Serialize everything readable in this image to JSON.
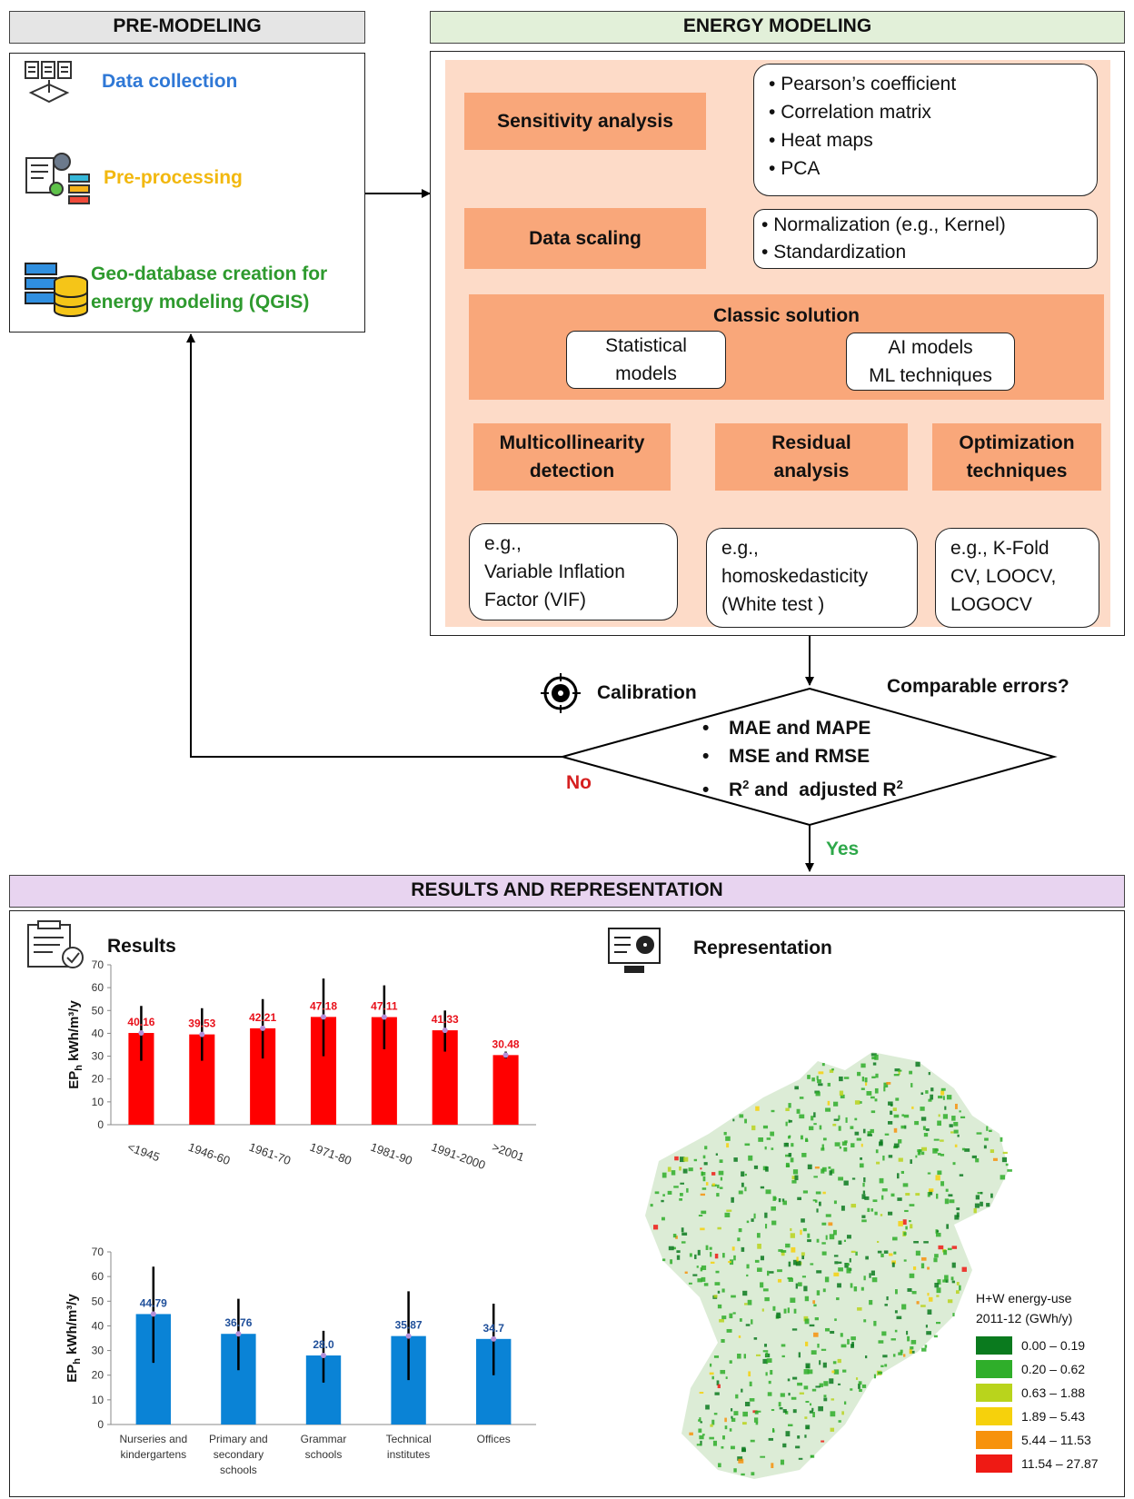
{
  "pre": {
    "title": "PRE-MODELING",
    "items": [
      "Data collection",
      "Pre-processing",
      "Geo-database creation for",
      "energy modeling (QGIS)"
    ]
  },
  "energy": {
    "title": "ENERGY MODELING",
    "sensitivity": "Sensitivity analysis",
    "sensitivity_items": [
      "Pearson’s coefficient",
      "Correlation matrix",
      "Heat maps",
      "PCA"
    ],
    "scaling": "Data scaling",
    "scaling_items": [
      "Normalization (e.g., Kernel)",
      "Standardization"
    ],
    "classic": "Classic solution",
    "stat_models": [
      "Statistical",
      "models"
    ],
    "ai_models": [
      "AI models",
      "ML techniques"
    ],
    "multi": [
      "Multicollinearity",
      "detection"
    ],
    "multi_ex": [
      "e.g.,",
      "Variable Inflation",
      "Factor (VIF)"
    ],
    "residual": [
      "Residual",
      "analysis"
    ],
    "residual_ex": [
      "e.g.,",
      "homoskedasticity",
      "(White test )"
    ],
    "optim": [
      "Optimization",
      "techniques"
    ],
    "optim_ex": [
      "e.g., K-Fold",
      "CV, LOOCV,",
      "LOGOCV"
    ]
  },
  "calibration": {
    "label": "Calibration",
    "question": "Comparable errors?",
    "metrics": [
      "MAE and MAPE",
      "MSE and RMSE"
    ],
    "metric3": {
      "a": "R",
      "sup1": "2",
      "b": " and  adjusted R",
      "sup2": "2"
    },
    "no": "No",
    "yes": "Yes"
  },
  "results": {
    "title": "RESULTS AND REPRESENTATION",
    "results_label": "Results",
    "representation_label": "Representation"
  },
  "legend": {
    "title": [
      "H+W energy-use",
      "2011-12 (GWh/y)"
    ],
    "items": [
      {
        "label": "0.00 – 0.19",
        "color": "#0a7a1e"
      },
      {
        "label": "0.20 – 0.62",
        "color": "#2fae2a"
      },
      {
        "label": "0.63 – 1.88",
        "color": "#b9d41c"
      },
      {
        "label": "1.89 – 5.43",
        "color": "#f6d10c"
      },
      {
        "label": "5.44 – 11.53",
        "color": "#f7920c"
      },
      {
        "label": "11.54 – 27.87",
        "color": "#ef1a14"
      }
    ]
  },
  "chart_data": [
    {
      "type": "bar",
      "ylabel": "EPh kWh/m³/y",
      "ylim": [
        0,
        70
      ],
      "yticks": [
        0,
        10,
        20,
        30,
        40,
        50,
        60,
        70
      ],
      "categories": [
        "<1945",
        "1946-60",
        "1961-70",
        "1971-80",
        "1981-90",
        "1991-2000",
        ">2001"
      ],
      "values": [
        40.16,
        39.53,
        42.21,
        47.18,
        47.11,
        41.33,
        30.48
      ],
      "labels": [
        "40.16",
        "39.53",
        "42.21",
        "47.18",
        "47.11",
        "41.33",
        "30.48"
      ],
      "error_low": [
        28,
        28,
        29,
        30,
        33,
        32,
        29
      ],
      "error_high": [
        52,
        51,
        55,
        64,
        61,
        50,
        32
      ],
      "color": "#ff0000",
      "label_color": "#e8101a"
    },
    {
      "type": "bar",
      "ylabel": "EPh kWh/m³/y",
      "ylim": [
        0,
        70
      ],
      "yticks": [
        0,
        10,
        20,
        30,
        40,
        50,
        60,
        70
      ],
      "categories": [
        [
          "Nurseries and",
          "kindergartens"
        ],
        [
          "Primary and",
          "secondary",
          "schools"
        ],
        [
          "Grammar",
          "schools"
        ],
        [
          "Technical",
          "institutes"
        ],
        [
          "Offices"
        ]
      ],
      "values": [
        44.79,
        36.76,
        28.0,
        35.87,
        34.7
      ],
      "labels": [
        "44.79",
        "36.76",
        "28.0",
        "35.87",
        "34.7"
      ],
      "error_low": [
        25,
        22,
        17,
        18,
        20
      ],
      "error_high": [
        64,
        51,
        38,
        54,
        49
      ],
      "color": "#0a83d6",
      "label_color": "#1f4f9a"
    }
  ]
}
